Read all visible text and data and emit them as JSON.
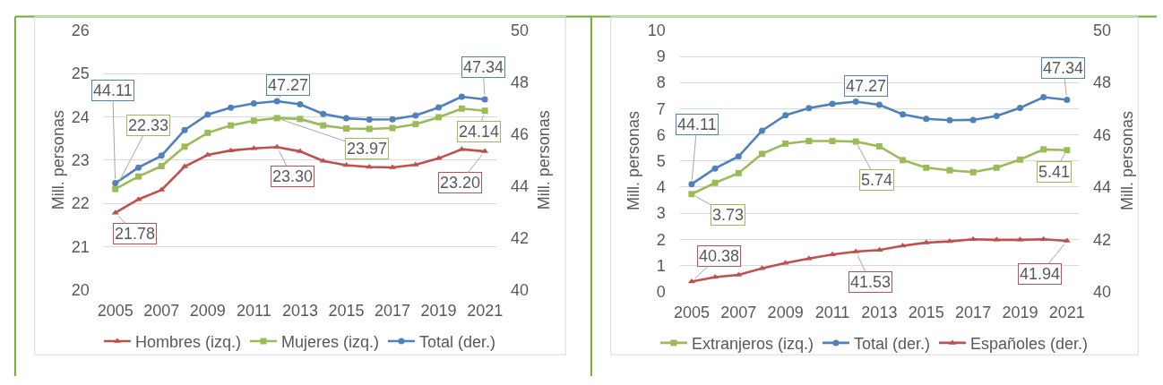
{
  "chart_data": [
    {
      "type": "line",
      "x": [
        2005,
        2006,
        2007,
        2008,
        2009,
        2010,
        2011,
        2012,
        2013,
        2014,
        2015,
        2016,
        2017,
        2018,
        2019,
        2020,
        2021
      ],
      "xlim": [
        2004.5,
        2021.5
      ],
      "xticks": [
        2005,
        2007,
        2009,
        2011,
        2013,
        2015,
        2017,
        2019,
        2021
      ],
      "ylim": [
        20,
        26
      ],
      "yticks": [
        20,
        21,
        22,
        23,
        24,
        25,
        26
      ],
      "y2lim": [
        40,
        50
      ],
      "y2ticks": [
        40,
        42,
        44,
        46,
        48,
        50
      ],
      "ylabel": "Mill. personas",
      "y2label": "Mill. personas",
      "grid": "y",
      "legend": "bottom",
      "series": [
        {
          "name": "Hombres (izq.)",
          "color": "#c0504d",
          "marker": "triangle",
          "values": [
            21.78,
            22.09,
            22.31,
            22.85,
            23.12,
            23.22,
            23.27,
            23.3,
            23.2,
            22.98,
            22.88,
            22.84,
            22.83,
            22.89,
            23.04,
            23.25,
            23.2
          ],
          "value_labels": [
            "21.78",
            null,
            null,
            null,
            null,
            null,
            null,
            "23.30",
            null,
            null,
            null,
            null,
            null,
            null,
            null,
            null,
            "23.20"
          ]
        },
        {
          "name": "Mujeres (izq.)",
          "color": "#9bbb59",
          "marker": "square",
          "values": [
            22.33,
            22.62,
            22.86,
            23.31,
            23.63,
            23.8,
            23.91,
            23.97,
            23.95,
            23.8,
            23.73,
            23.72,
            23.74,
            23.83,
            23.99,
            24.19,
            24.14
          ],
          "value_labels": [
            "22.33",
            null,
            null,
            null,
            null,
            null,
            null,
            "23.97",
            null,
            null,
            null,
            null,
            null,
            null,
            null,
            null,
            "24.14"
          ]
        },
        {
          "name": "Total (der.)",
          "color": "#4f81bd",
          "marker": "circle",
          "axis": "y2",
          "values": [
            44.11,
            44.71,
            45.17,
            46.16,
            46.75,
            47.02,
            47.18,
            47.27,
            47.15,
            46.78,
            46.61,
            46.56,
            46.57,
            46.72,
            47.03,
            47.44,
            47.34
          ],
          "value_labels": [
            "44.11",
            null,
            null,
            null,
            null,
            null,
            null,
            "47.27",
            null,
            null,
            null,
            null,
            null,
            null,
            null,
            null,
            "47.34"
          ]
        }
      ]
    },
    {
      "type": "line",
      "x": [
        2005,
        2006,
        2007,
        2008,
        2009,
        2010,
        2011,
        2012,
        2013,
        2014,
        2015,
        2016,
        2017,
        2018,
        2019,
        2020,
        2021
      ],
      "xlim": [
        2004.5,
        2021.5
      ],
      "xticks": [
        2005,
        2007,
        2009,
        2011,
        2013,
        2015,
        2017,
        2019,
        2021
      ],
      "ylim": [
        0,
        10
      ],
      "yticks": [
        0,
        1,
        2,
        3,
        4,
        5,
        6,
        7,
        8,
        9,
        10
      ],
      "y2lim": [
        40,
        50
      ],
      "y2ticks": [
        40,
        42,
        44,
        46,
        48,
        50
      ],
      "ylabel": "Mill. personas",
      "y2label": "Mill. personas",
      "grid": "y",
      "legend": "bottom",
      "series": [
        {
          "name": "Extranjeros (izq.)",
          "color": "#9bbb59",
          "marker": "square",
          "values": [
            3.73,
            4.16,
            4.53,
            5.27,
            5.66,
            5.76,
            5.76,
            5.74,
            5.56,
            5.03,
            4.74,
            4.64,
            4.57,
            4.74,
            5.05,
            5.44,
            5.41
          ],
          "value_labels": [
            "3.73",
            null,
            null,
            null,
            null,
            null,
            null,
            "5.74",
            null,
            null,
            null,
            null,
            null,
            null,
            null,
            null,
            "5.41"
          ]
        },
        {
          "name": "Total (der.)",
          "color": "#4f81bd",
          "marker": "circle",
          "axis": "y2",
          "values": [
            44.11,
            44.71,
            45.17,
            46.16,
            46.75,
            47.02,
            47.18,
            47.27,
            47.15,
            46.78,
            46.61,
            46.56,
            46.57,
            46.72,
            47.03,
            47.44,
            47.34
          ],
          "value_labels": [
            "44.11",
            null,
            null,
            null,
            null,
            null,
            null,
            "47.27",
            null,
            null,
            null,
            null,
            null,
            null,
            null,
            null,
            "47.34"
          ]
        },
        {
          "name": "Españoles (der.)",
          "color": "#c0504d",
          "marker": "triangle",
          "axis": "y2",
          "values": [
            40.38,
            40.55,
            40.64,
            40.89,
            41.09,
            41.26,
            41.42,
            41.53,
            41.59,
            41.75,
            41.87,
            41.92,
            42.0,
            41.98,
            41.98,
            42.0,
            41.94
          ],
          "value_labels": [
            "40.38",
            null,
            null,
            null,
            null,
            null,
            null,
            "41.53",
            null,
            null,
            null,
            null,
            null,
            null,
            null,
            null,
            "41.94"
          ]
        }
      ]
    }
  ]
}
